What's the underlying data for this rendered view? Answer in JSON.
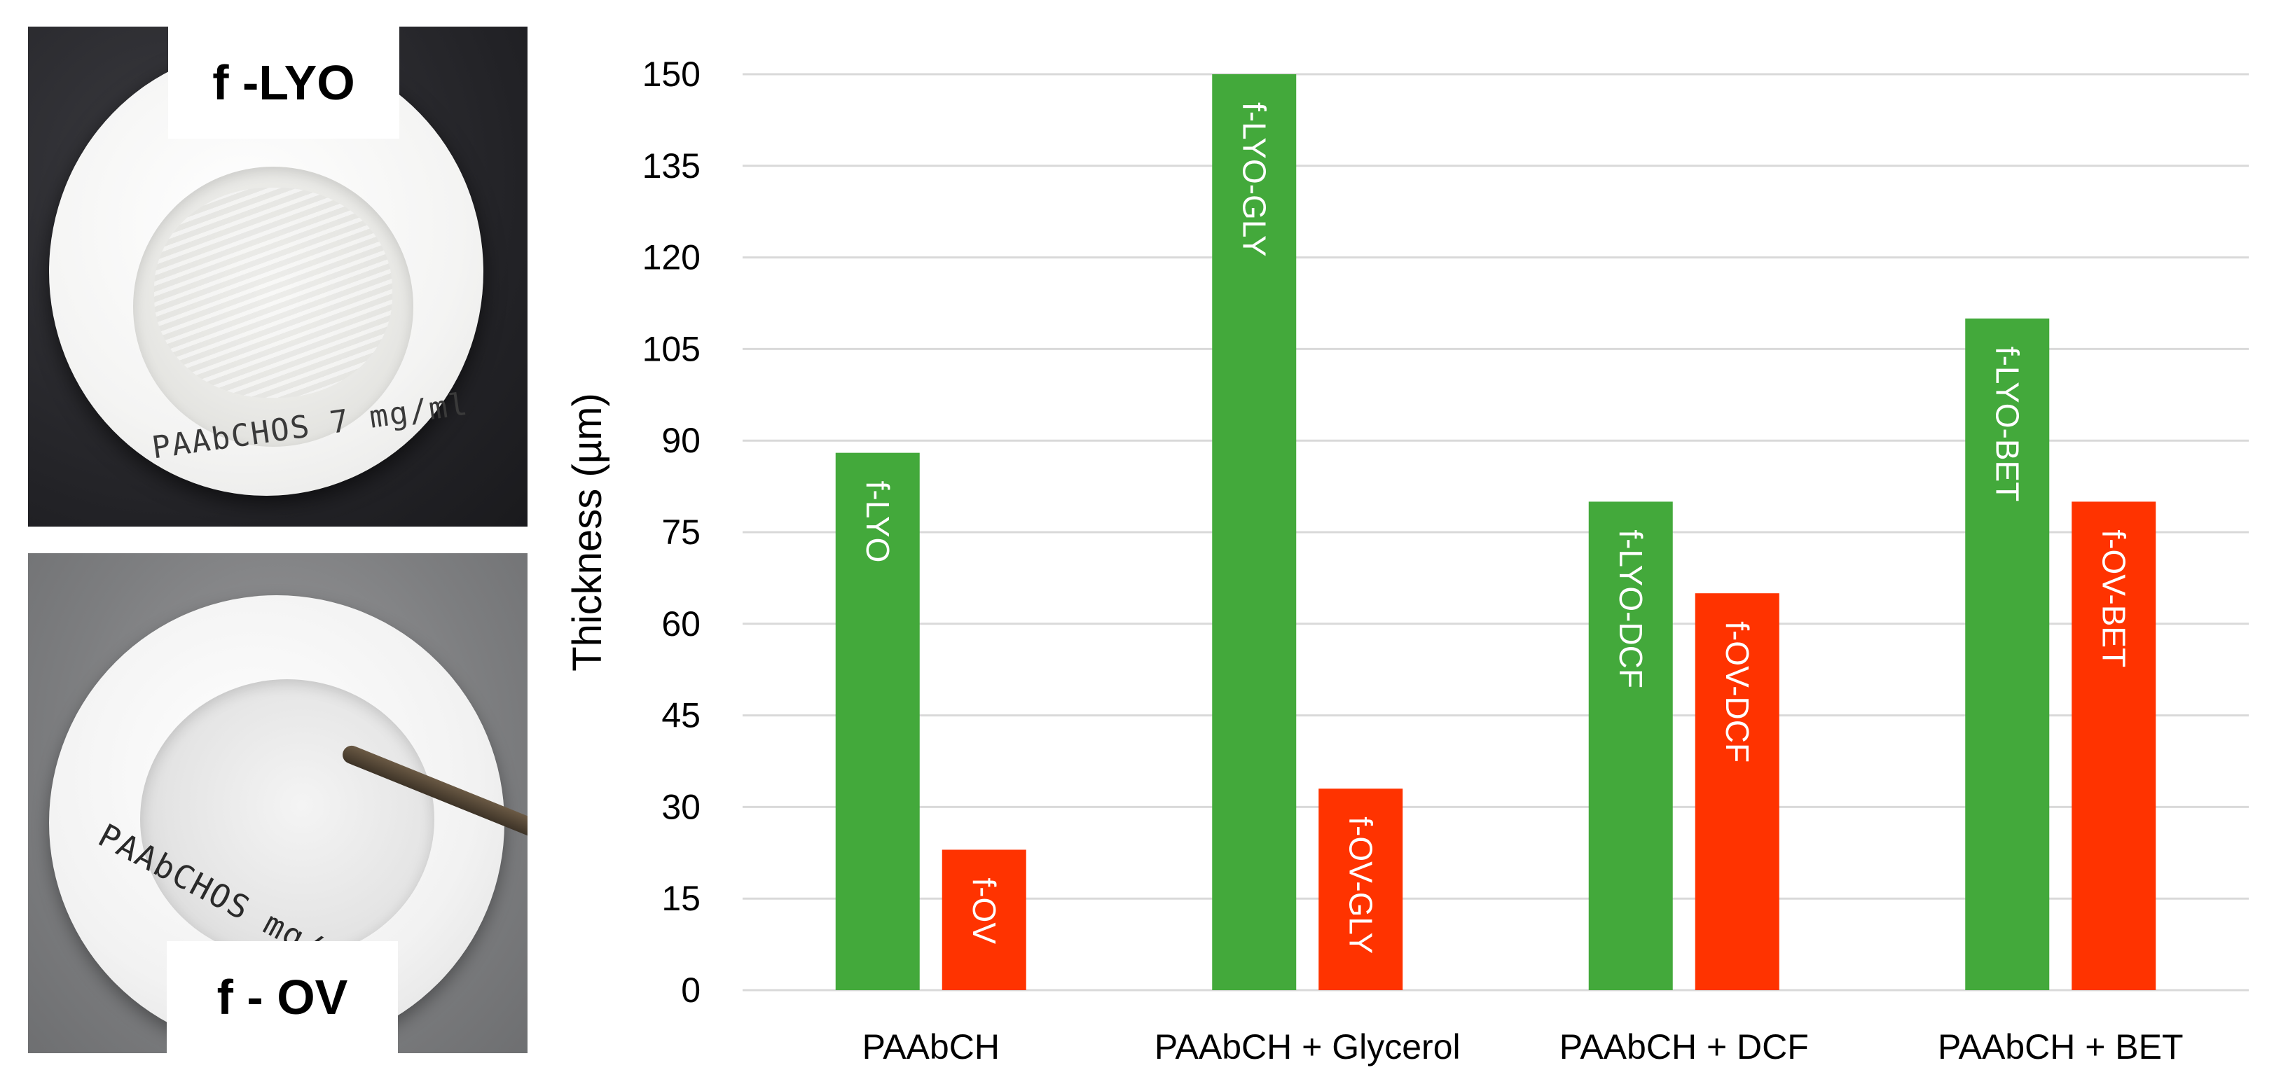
{
  "photos": {
    "top": {
      "label": "f -LYO",
      "handwriting": "PAAbCHOS 7 mg/ml"
    },
    "bottom": {
      "label": "f - OV",
      "handwriting": "PAAbCHOS mg/ml"
    }
  },
  "chart_data": {
    "type": "bar",
    "title": "",
    "xlabel": "",
    "ylabel": "Thickness (µm)",
    "ylim": [
      0,
      150
    ],
    "yticks": [
      0,
      15,
      30,
      45,
      60,
      75,
      90,
      105,
      120,
      135,
      150
    ],
    "grid": true,
    "legend": "none",
    "categories": [
      "PAAbCH",
      "PAAbCH + Glycerol",
      "PAAbCH + DCF",
      "PAAbCH + BET"
    ],
    "series": [
      {
        "color": "#43a93b",
        "values": [
          88,
          150,
          80,
          110
        ],
        "bar_labels": [
          "f-LYO",
          "f-LYO-GLY",
          "f-LYO-DCF",
          "f-LYO-BET"
        ]
      },
      {
        "color": "#ff3300",
        "values": [
          23,
          33,
          65,
          80
        ],
        "bar_labels": [
          "f-OV",
          "f-OV-GLY",
          "f-OV-DCF",
          "f-OV-BET"
        ]
      }
    ]
  }
}
